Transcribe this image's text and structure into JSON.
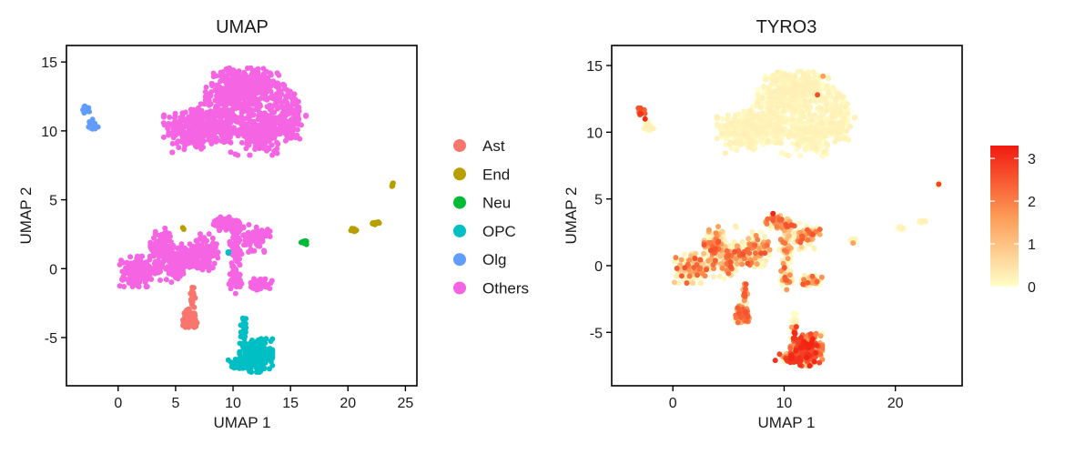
{
  "chart_data": [
    {
      "type": "scatter",
      "title": "UMAP",
      "xlabel": "UMAP 1",
      "ylabel": "UMAP 2",
      "xlim": [
        -4.5,
        26
      ],
      "ylim": [
        -8.5,
        16.2
      ],
      "xticks": [
        0,
        5,
        10,
        15,
        20,
        25
      ],
      "yticks": [
        -5,
        0,
        5,
        10,
        15
      ],
      "xtick_labels": [
        "0",
        "5",
        "10",
        "15",
        "20",
        "25"
      ],
      "ytick_labels": [
        "-5",
        "0",
        "5",
        "10",
        "15"
      ],
      "grid": false,
      "legend_position": "right",
      "legend": [
        {
          "label": "Ast",
          "color": "#F8766D"
        },
        {
          "label": "End",
          "color": "#B79F00"
        },
        {
          "label": "Neu",
          "color": "#00BA38"
        },
        {
          "label": "OPC",
          "color": "#00BFC4"
        },
        {
          "label": "Olg",
          "color": "#619CFF"
        },
        {
          "label": "Others",
          "color": "#F564E3"
        }
      ],
      "series": [
        {
          "name": "Others",
          "color": "#F564E3",
          "clusters": [
            {
              "cx": 6.5,
              "cy": 10.2,
              "rx": 2.3,
              "ry": 1.6,
              "n": 260
            },
            {
              "cx": 9.8,
              "cy": 12.8,
              "rx": 2.0,
              "ry": 1.6,
              "n": 230
            },
            {
              "cx": 12.0,
              "cy": 13.1,
              "rx": 1.8,
              "ry": 1.4,
              "n": 200
            },
            {
              "cx": 12.3,
              "cy": 10.0,
              "rx": 2.4,
              "ry": 1.6,
              "n": 240
            },
            {
              "cx": 14.8,
              "cy": 11.3,
              "rx": 1.4,
              "ry": 2.0,
              "n": 160
            },
            {
              "cx": 9.0,
              "cy": 10.5,
              "rx": 1.6,
              "ry": 1.2,
              "n": 120
            },
            {
              "cx": 1.9,
              "cy": -0.2,
              "rx": 1.6,
              "ry": 1.0,
              "n": 170
            },
            {
              "cx": 3.8,
              "cy": 1.5,
              "rx": 0.9,
              "ry": 1.3,
              "n": 120
            },
            {
              "cx": 5.8,
              "cy": 0.8,
              "rx": 1.5,
              "ry": 0.9,
              "n": 130
            },
            {
              "cx": 7.6,
              "cy": 1.2,
              "rx": 1.0,
              "ry": 1.2,
              "n": 90
            },
            {
              "cx": 9.6,
              "cy": 3.2,
              "rx": 1.2,
              "ry": 0.5,
              "n": 80
            },
            {
              "cx": 10.2,
              "cy": 1.5,
              "rx": 0.5,
              "ry": 1.4,
              "n": 60
            },
            {
              "cx": 12.0,
              "cy": 2.2,
              "rx": 1.1,
              "ry": 0.9,
              "n": 90
            },
            {
              "cx": 10.2,
              "cy": -0.7,
              "rx": 0.5,
              "ry": 1.0,
              "n": 40
            },
            {
              "cx": 12.4,
              "cy": -1.1,
              "rx": 0.9,
              "ry": 0.4,
              "n": 60
            },
            {
              "cx": 4.9,
              "cy": -0.1,
              "rx": 0.8,
              "ry": 0.8,
              "n": 60
            }
          ]
        },
        {
          "name": "Ast",
          "color": "#F8766D",
          "clusters": [
            {
              "cx": 6.3,
              "cy": -3.6,
              "rx": 0.6,
              "ry": 0.6,
              "n": 80
            },
            {
              "cx": 6.5,
              "cy": -2.0,
              "rx": 0.25,
              "ry": 0.8,
              "n": 20
            }
          ]
        },
        {
          "name": "End",
          "color": "#B79F00",
          "clusters": [
            {
              "cx": 20.5,
              "cy": 2.8,
              "rx": 0.3,
              "ry": 0.15,
              "n": 12
            },
            {
              "cx": 22.4,
              "cy": 3.3,
              "rx": 0.3,
              "ry": 0.15,
              "n": 12
            },
            {
              "cx": 23.9,
              "cy": 6.1,
              "rx": 0.12,
              "ry": 0.12,
              "n": 5
            },
            {
              "cx": 5.6,
              "cy": 2.9,
              "rx": 0.1,
              "ry": 0.1,
              "n": 2
            }
          ]
        },
        {
          "name": "Neu",
          "color": "#00BA38",
          "clusters": [
            {
              "cx": 16.2,
              "cy": 1.9,
              "rx": 0.35,
              "ry": 0.15,
              "n": 14
            }
          ]
        },
        {
          "name": "OPC",
          "color": "#00BFC4",
          "clusters": [
            {
              "cx": 12.0,
              "cy": -6.3,
              "rx": 1.3,
              "ry": 1.1,
              "n": 300
            },
            {
              "cx": 10.6,
              "cy": -6.9,
              "rx": 1.0,
              "ry": 0.3,
              "n": 60
            },
            {
              "cx": 11.0,
              "cy": -4.5,
              "rx": 0.3,
              "ry": 1.0,
              "n": 25
            },
            {
              "cx": 9.6,
              "cy": 1.2,
              "rx": 0.15,
              "ry": 0.3,
              "n": 5
            }
          ]
        },
        {
          "name": "Olg",
          "color": "#619CFF",
          "clusters": [
            {
              "cx": -2.3,
              "cy": 10.4,
              "rx": 0.5,
              "ry": 0.4,
              "n": 40
            },
            {
              "cx": -2.9,
              "cy": 11.5,
              "rx": 0.35,
              "ry": 0.3,
              "n": 15
            }
          ]
        }
      ]
    },
    {
      "type": "scatter",
      "title": "TYRO3",
      "xlabel": "UMAP 1",
      "ylabel": "UMAP 2",
      "xlim": [
        -5.5,
        26
      ],
      "ylim": [
        -9,
        16.5
      ],
      "xticks": [
        0,
        10,
        20
      ],
      "yticks": [
        -5,
        0,
        5,
        10,
        15
      ],
      "xtick_labels": [
        "0",
        "10",
        "20"
      ],
      "ytick_labels": [
        "-5",
        "0",
        "5",
        "10",
        "15"
      ],
      "grid": false,
      "legend_position": "right",
      "colorbar": {
        "min": 0,
        "max": 3.3,
        "ticks": [
          0,
          1,
          2,
          3
        ],
        "tick_labels": [
          "0",
          "1",
          "2",
          "3"
        ],
        "color_low": "#FFFFC8",
        "color_mid": "#FD9A55",
        "color_high": "#F11A10"
      },
      "highlights": [
        {
          "cx": -2.9,
          "cy": 11.4,
          "value": 3.0
        },
        {
          "cx": -2.5,
          "cy": 11.0,
          "value": 3.1
        },
        {
          "cx": -3.1,
          "cy": 11.8,
          "value": 2.6
        },
        {
          "cx": 13.5,
          "cy": 14.2,
          "value": 1.6
        },
        {
          "cx": 13.0,
          "cy": 12.8,
          "value": 2.6
        },
        {
          "cx": 9.0,
          "cy": 3.9,
          "value": 3.2
        },
        {
          "cx": 11.6,
          "cy": 2.2,
          "value": 2.4
        },
        {
          "cx": 23.9,
          "cy": 6.1,
          "value": 2.8
        },
        {
          "cx": 16.2,
          "cy": 1.7,
          "value": 1.5
        },
        {
          "cx": 9.2,
          "cy": -7.1,
          "value": 3.0
        }
      ]
    }
  ]
}
